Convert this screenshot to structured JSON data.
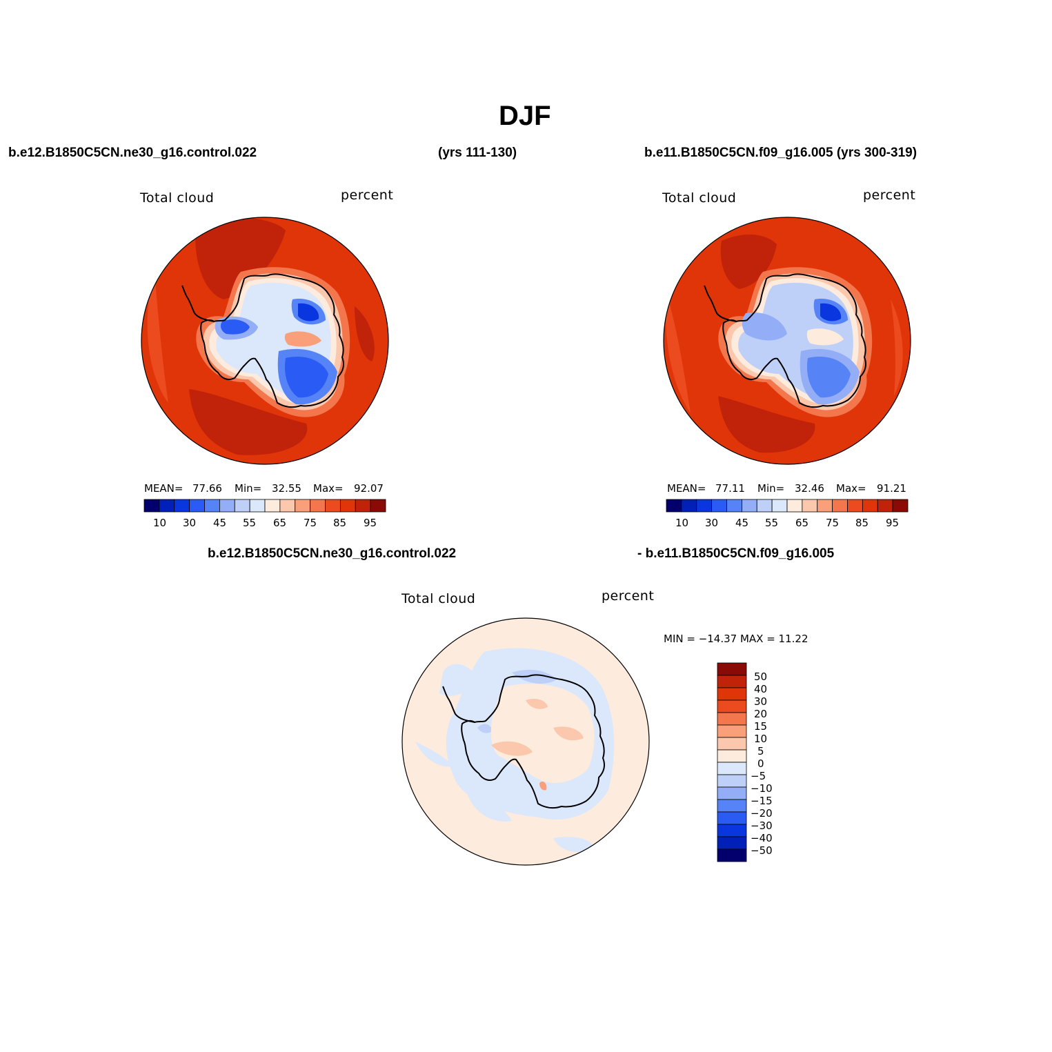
{
  "title": "DJF",
  "top_left": {
    "case": "b.e12.B1850C5CN.ne30_g16.control.022",
    "years": "(yrs 111-130)",
    "var_label": "Total cloud",
    "units": "percent",
    "mean_label": "MEAN=",
    "mean": "77.66",
    "min_label": "Min=",
    "min": "32.55",
    "max_label": "Max=",
    "max": "92.07"
  },
  "top_right": {
    "case": "b.e11.B1850C5CN.f09_g16.005 (yrs 300-319)",
    "var_label": "Total cloud",
    "units": "percent",
    "mean_label": "MEAN=",
    "mean": "77.11",
    "min_label": "Min=",
    "min": "32.46",
    "max_label": "Max=",
    "max": "91.21"
  },
  "bottom": {
    "case_a": "b.e12.B1850C5CN.ne30_g16.control.022",
    "case_b": "- b.e11.B1850C5CN.f09_g16.005",
    "var_label": "Total cloud",
    "units": "percent",
    "minmax": "MIN = −14.37 MAX =   11.22"
  },
  "colorbar_main": {
    "tick_labels": [
      "10",
      "30",
      "45",
      "55",
      "65",
      "75",
      "85",
      "95"
    ],
    "colors": [
      "#03006e",
      "#0020b8",
      "#0a36e0",
      "#2a5cf5",
      "#5683f5",
      "#93adf7",
      "#bed0f8",
      "#dbe8fb",
      "#fdebdd",
      "#fcc8ad",
      "#f9a07a",
      "#f3764c",
      "#ec4a1f",
      "#e03508",
      "#c1220a",
      "#8a0a06"
    ]
  },
  "colorbar_diff": {
    "tick_labels": [
      "50",
      "40",
      "30",
      "20",
      "15",
      "10",
      "5",
      "0",
      "−5",
      "−10",
      "−15",
      "−20",
      "−30",
      "−40",
      "−50"
    ],
    "colors": [
      "#8a0a06",
      "#c1220a",
      "#e03508",
      "#ec4a1f",
      "#f3764c",
      "#f9a07a",
      "#fcc8ad",
      "#fdebdd",
      "#dbe8fb",
      "#bed0f8",
      "#93adf7",
      "#5683f5",
      "#2a5cf5",
      "#0a36e0",
      "#0020b8",
      "#03006e"
    ]
  }
}
